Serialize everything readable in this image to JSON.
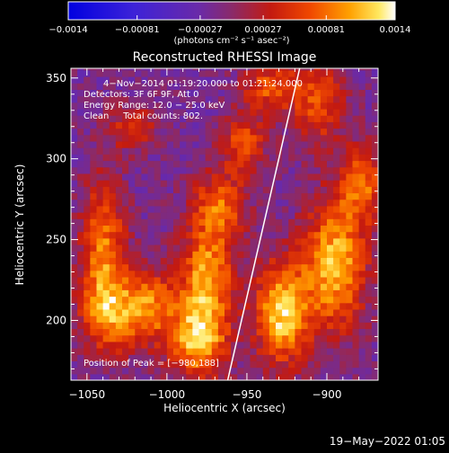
{
  "chart_data": {
    "type": "heatmap",
    "title": "Reconstructed RHESSI Image",
    "xlabel": "Heliocentric X (arcsec)",
    "ylabel": "Heliocentric Y (arcsec)",
    "xlim": [
      -1060,
      -868
    ],
    "ylim": [
      163,
      356
    ],
    "x_ticks": [
      {
        "value": -1050,
        "label": "−1050"
      },
      {
        "value": -1000,
        "label": "−1000"
      },
      {
        "value": -950,
        "label": "−950"
      },
      {
        "value": -900,
        "label": "−900"
      }
    ],
    "y_ticks": [
      {
        "value": 200,
        "label": "200"
      },
      {
        "value": 250,
        "label": "250"
      },
      {
        "value": 300,
        "label": "300"
      },
      {
        "value": 350,
        "label": "350"
      }
    ],
    "colorbar": {
      "min": -0.0014,
      "max": 0.0014,
      "ticks": [
        {
          "value": -0.0014,
          "label": "−0.0014"
        },
        {
          "value": -0.00081,
          "label": "−0.00081"
        },
        {
          "value": -0.00027,
          "label": "−0.00027"
        },
        {
          "value": 0.00027,
          "label": "0.00027"
        },
        {
          "value": 0.00081,
          "label": "0.00081"
        },
        {
          "value": 0.0014,
          "label": "0.0014"
        }
      ],
      "unit_label": "(photons cm⁻² s⁻¹ asec⁻²)"
    },
    "annotations": [
      "4−Nov−2014 01:19:20.000 to 01:21:24.000",
      "Detectors: 3F 6F 9F, Att 0",
      "Energy Range: 12.0 − 25.0 keV",
      "Clean     Total counts: 802."
    ],
    "peak_label": "Position of Peak = [−980,188]",
    "limb_line": [
      [
        -962,
        163
      ],
      [
        -917,
        356
      ]
    ],
    "bright_regions": [
      {
        "x": -1040,
        "y": 250,
        "sx": 10,
        "sy": 28,
        "amp": 0.00095
      },
      {
        "x": -1035,
        "y": 205,
        "sx": 13,
        "sy": 18,
        "amp": 0.0011
      },
      {
        "x": -1010,
        "y": 210,
        "sx": 10,
        "sy": 16,
        "amp": 0.0009
      },
      {
        "x": -1022,
        "y": 320,
        "sx": 12,
        "sy": 10,
        "amp": 0.0006
      },
      {
        "x": -980,
        "y": 190,
        "sx": 13,
        "sy": 18,
        "amp": 0.0014
      },
      {
        "x": -975,
        "y": 230,
        "sx": 12,
        "sy": 18,
        "amp": 0.0011
      },
      {
        "x": -968,
        "y": 270,
        "sx": 12,
        "sy": 15,
        "amp": 0.00095
      },
      {
        "x": -952,
        "y": 310,
        "sx": 10,
        "sy": 14,
        "amp": 0.0008
      },
      {
        "x": -935,
        "y": 345,
        "sx": 12,
        "sy": 10,
        "amp": 0.00085
      },
      {
        "x": -905,
        "y": 335,
        "sx": 12,
        "sy": 18,
        "amp": 0.0008
      },
      {
        "x": -928,
        "y": 205,
        "sx": 12,
        "sy": 22,
        "amp": 0.0014
      },
      {
        "x": -895,
        "y": 235,
        "sx": 14,
        "sy": 28,
        "amp": 0.0013
      },
      {
        "x": -878,
        "y": 285,
        "sx": 10,
        "sy": 16,
        "amp": 0.0009
      }
    ]
  },
  "footer": {
    "date": "19−May−2022 01:05"
  }
}
